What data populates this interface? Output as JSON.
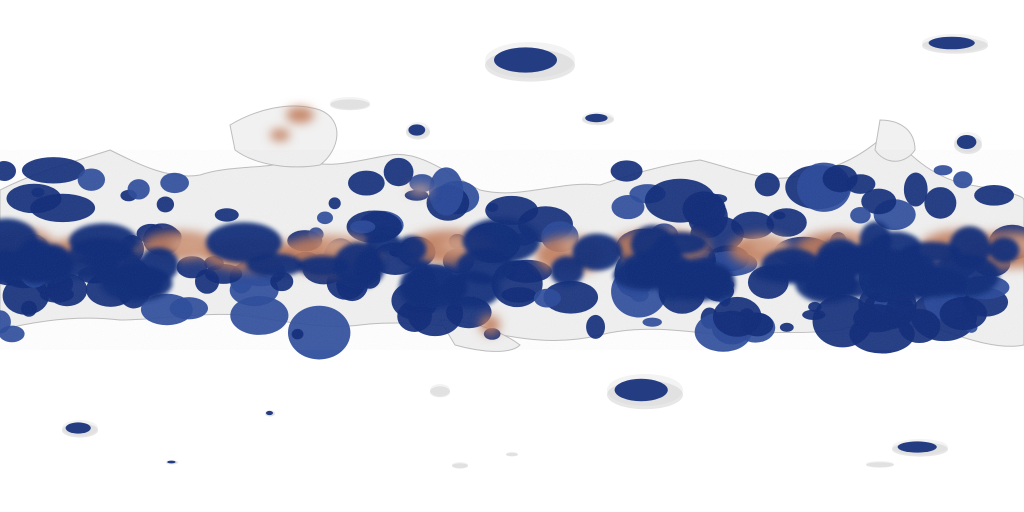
{
  "map": {
    "projection": "equirectangular",
    "background_color": "#ffffff",
    "palette": {
      "ocean": "#0f2a78",
      "ocean_light": "#2a4a9a",
      "land_light": "#f3f3f3",
      "land_shadow": "#cfcfcf",
      "desert": "#c07a5a",
      "desert_light": "#d9a990"
    }
  }
}
